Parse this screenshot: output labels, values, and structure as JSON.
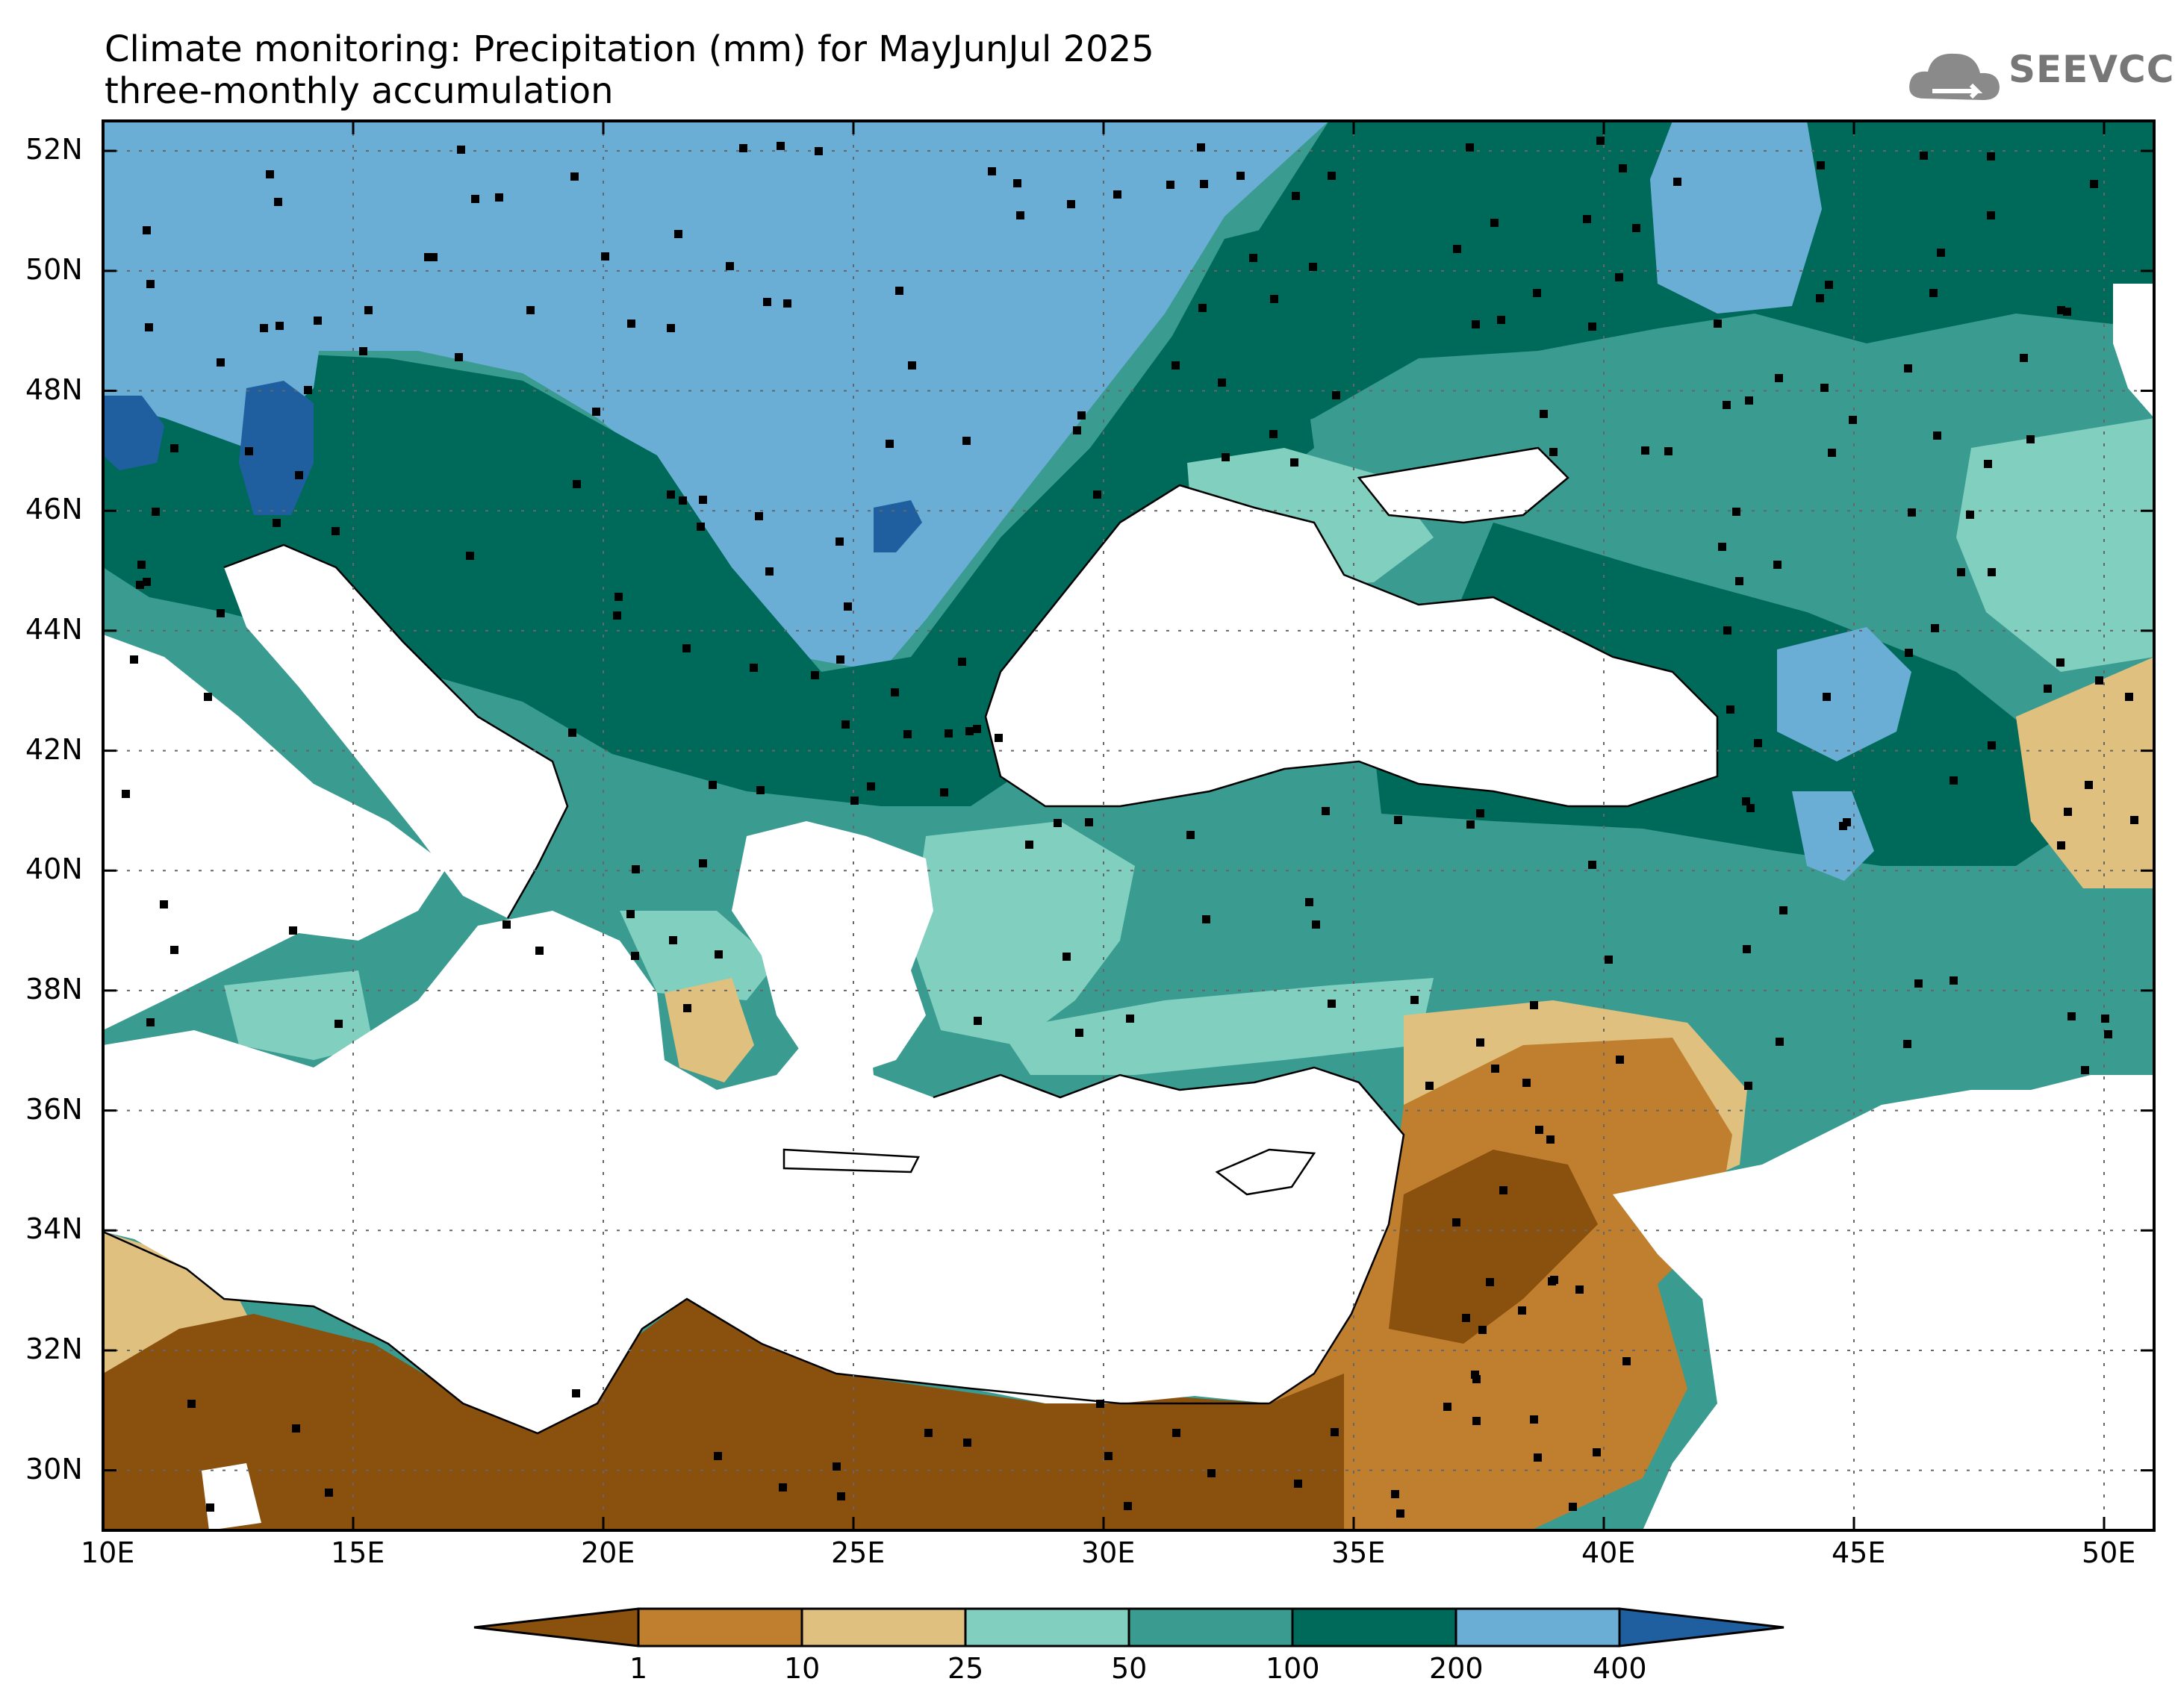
{
  "title": {
    "line1": "Climate monitoring: Precipitation (mm) for MayJunJul 2025",
    "line2": "three-monthly accumulation"
  },
  "logo": {
    "text": "SEEVCCC",
    "icon": "cloud-logo-icon"
  },
  "map": {
    "lon_range": [
      10,
      51
    ],
    "lat_range": [
      29,
      52.5
    ],
    "lon_ticks": [
      "10E",
      "15E",
      "20E",
      "25E",
      "30E",
      "35E",
      "40E",
      "45E",
      "50E"
    ],
    "lat_ticks": [
      "30N",
      "32N",
      "34N",
      "36N",
      "38N",
      "40N",
      "42N",
      "44N",
      "46N",
      "48N",
      "50N",
      "52N"
    ]
  },
  "legend": {
    "thresholds": [
      "1",
      "10",
      "25",
      "50",
      "100",
      "200",
      "400"
    ],
    "colors": [
      "#8a500e",
      "#bf7f2e",
      "#dfc07e",
      "#80cfbf",
      "#3a9b90",
      "#006a5a",
      "#6aaed6",
      "#1f5fa0"
    ]
  }
}
